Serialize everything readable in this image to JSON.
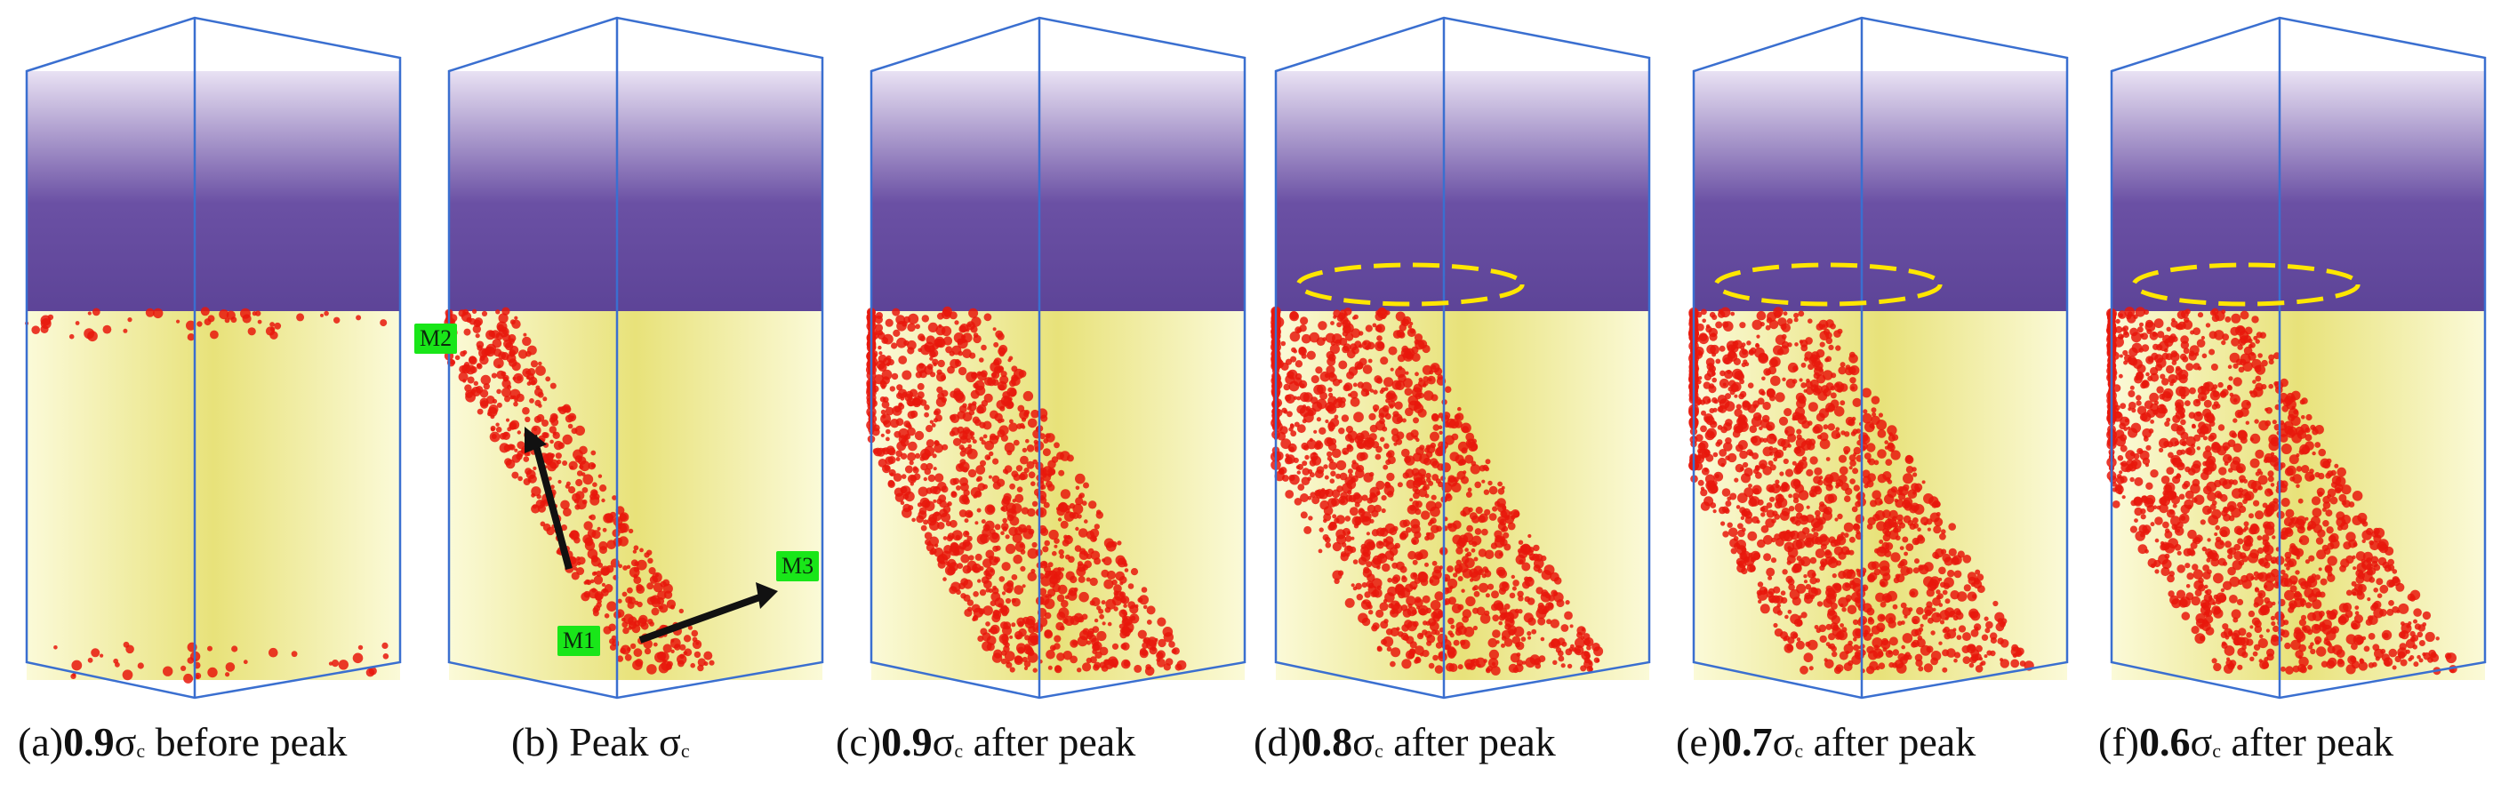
{
  "panels": [
    {
      "id": "a",
      "prefix": "(a)",
      "value": "0.9",
      "sym": "σ",
      "sub": "c",
      "suffix": " before peak",
      "fill": 0.04,
      "ellipse": false,
      "tags": []
    },
    {
      "id": "b",
      "prefix": "(b) ",
      "value": "",
      "sym": "Peak σ",
      "sub": "c",
      "suffix": "",
      "fill": 0.35,
      "ellipse": false,
      "tags": [
        "M2",
        "M1",
        "M3"
      ]
    },
    {
      "id": "c",
      "prefix": "(c)",
      "value": "0.9",
      "sym": "σ",
      "sub": "c",
      "suffix": "  after peak",
      "fill": 0.75,
      "ellipse": false,
      "tags": []
    },
    {
      "id": "d",
      "prefix": "(d)",
      "value": "0.8",
      "sym": "σ",
      "sub": "c",
      "suffix": "  after peak",
      "fill": 0.85,
      "ellipse": true,
      "tags": []
    },
    {
      "id": "e",
      "prefix": "(e)",
      "value": "0.7",
      "sym": "σ",
      "sub": "c",
      "suffix": "  after peak",
      "fill": 0.9,
      "ellipse": true,
      "tags": []
    },
    {
      "id": "f",
      "prefix": "(f)",
      "value": "0.6",
      "sym": "σ",
      "sub": "c",
      "suffix": "  after peak",
      "fill": 0.95,
      "ellipse": true,
      "tags": []
    }
  ],
  "colors": {
    "upper": "#5a3d9a",
    "lower": "#f3f0a0",
    "cracks": "#e8180c",
    "edge": "#3a6fd0",
    "ellipse": "#ffe600",
    "tag": "#19e619"
  }
}
